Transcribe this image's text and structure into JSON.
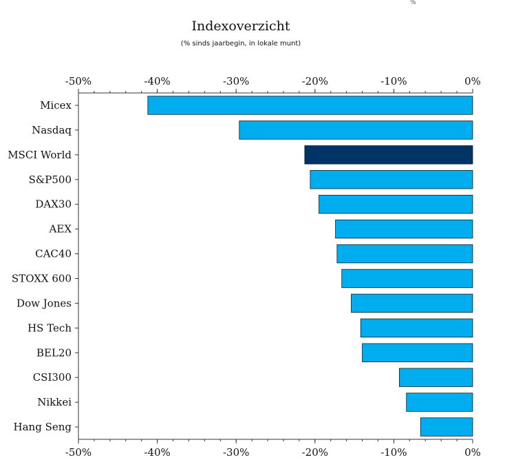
{
  "chart_data": {
    "type": "bar",
    "orientation": "horizontal",
    "title": "Indexoverzicht",
    "subtitle": "(% sinds jaarbegin, in lokale munt)",
    "xlabel": "",
    "ylabel": "",
    "xlim": [
      -50,
      0
    ],
    "xticks": [
      -50,
      -40,
      -30,
      -20,
      -10,
      0
    ],
    "xtick_labels": [
      "-50%",
      "-40%",
      "-30%",
      "-20%",
      "-10%",
      "0%"
    ],
    "axis_position": "top and bottom",
    "grid": false,
    "categories": [
      "Micex",
      "Nasdaq",
      "MSCI World",
      "S&P500",
      "DAX30",
      "AEX",
      "CAC40",
      "STOXX 600",
      "Dow Jones",
      "HS Tech",
      "BEL20",
      "CSI300",
      "Nikkei",
      "Hang Seng"
    ],
    "values": [
      -41.2,
      -29.6,
      -21.3,
      -20.6,
      -19.5,
      -17.4,
      -17.2,
      -16.6,
      -15.4,
      -14.2,
      -14.0,
      -9.3,
      -8.4,
      -6.6
    ],
    "highlight_category": "MSCI World",
    "colors": {
      "bar": "#00aeef",
      "highlight": "#003366",
      "edge": "#1a1a1a"
    }
  }
}
